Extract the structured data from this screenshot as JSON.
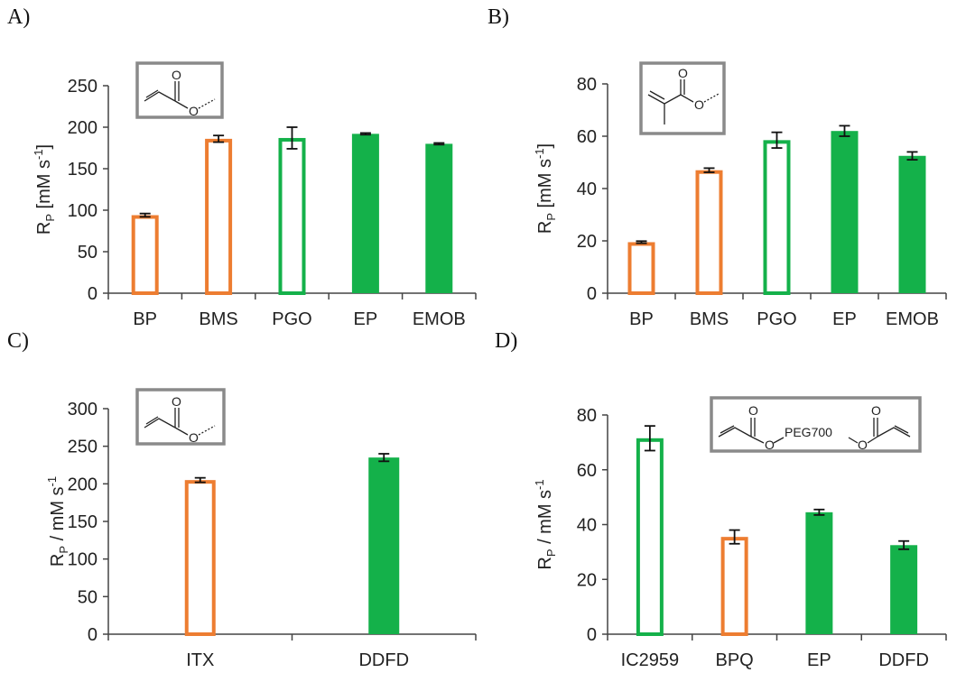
{
  "colors": {
    "orange": "#ED7D31",
    "green": "#14B14A"
  },
  "chart_data": [
    {
      "type": "bar",
      "panel": "A)",
      "ylabel_main": "R",
      "ylabel_sub": "P",
      "ylabel_rest": " [mM s",
      "ylabel_sup": "-1",
      "ylabel_end": "]",
      "ylim": [
        0,
        250
      ],
      "yticks": [
        0,
        50,
        100,
        150,
        200,
        250
      ],
      "categories": [
        "BP",
        "BMS",
        "PGO",
        "EP",
        "EMOB"
      ],
      "values": [
        94,
        186,
        187,
        192,
        180
      ],
      "errors": [
        2,
        4,
        13,
        1,
        1
      ],
      "colors": [
        "orange",
        "orange",
        "green",
        "green",
        "green"
      ],
      "filled": [
        false,
        false,
        false,
        true,
        true
      ],
      "inset": {
        "type": "acrylate",
        "atom_top": "O",
        "atom_bottom": "O"
      }
    },
    {
      "type": "bar",
      "panel": "B)",
      "ylabel_main": "R",
      "ylabel_sub": "P",
      "ylabel_rest": " [mM s",
      "ylabel_sup": "-1",
      "ylabel_end": "]",
      "ylim": [
        0,
        80
      ],
      "yticks": [
        0,
        20,
        40,
        60,
        80
      ],
      "categories": [
        "BP",
        "BMS",
        "PGO",
        "EP",
        "EMOB"
      ],
      "values": [
        19.5,
        47,
        58.5,
        62,
        52.5
      ],
      "errors": [
        0.4,
        0.8,
        3,
        2,
        1.5
      ],
      "colors": [
        "orange",
        "orange",
        "green",
        "green",
        "green"
      ],
      "filled": [
        false,
        false,
        false,
        true,
        true
      ],
      "inset": {
        "type": "methacrylate",
        "atom_top": "O",
        "atom_bottom": "O"
      }
    },
    {
      "type": "bar",
      "panel": "C)",
      "ylabel_main": "R",
      "ylabel_sub": "P",
      "ylabel_rest": " / mM s",
      "ylabel_sup": "-1",
      "ylabel_end": "",
      "ylim": [
        0,
        300
      ],
      "yticks": [
        0,
        50,
        100,
        150,
        200,
        250,
        300
      ],
      "categories": [
        "ITX",
        "DDFD"
      ],
      "values": [
        205,
        235
      ],
      "errors": [
        3,
        5
      ],
      "colors": [
        "orange",
        "green"
      ],
      "filled": [
        false,
        true
      ],
      "inset": {
        "type": "acrylate",
        "atom_top": "O",
        "atom_bottom": "O"
      }
    },
    {
      "type": "bar",
      "panel": "D)",
      "ylabel_main": "R",
      "ylabel_sub": "P",
      "ylabel_rest": " / mM s",
      "ylabel_sup": "-1",
      "ylabel_end": "",
      "ylim": [
        0,
        80
      ],
      "yticks": [
        0,
        20,
        40,
        60,
        80
      ],
      "categories": [
        "IC2959",
        "BPQ",
        "EP",
        "DDFD"
      ],
      "values": [
        71.5,
        35.5,
        44.5,
        32.5
      ],
      "errors": [
        4.5,
        2.5,
        1,
        1.5
      ],
      "colors": [
        "green",
        "orange",
        "green",
        "green"
      ],
      "filled": [
        false,
        false,
        true,
        true
      ],
      "inset": {
        "type": "peg_diacrylate",
        "atom_top": "O",
        "atom_bottom": "O",
        "label": "PEG700"
      }
    }
  ]
}
